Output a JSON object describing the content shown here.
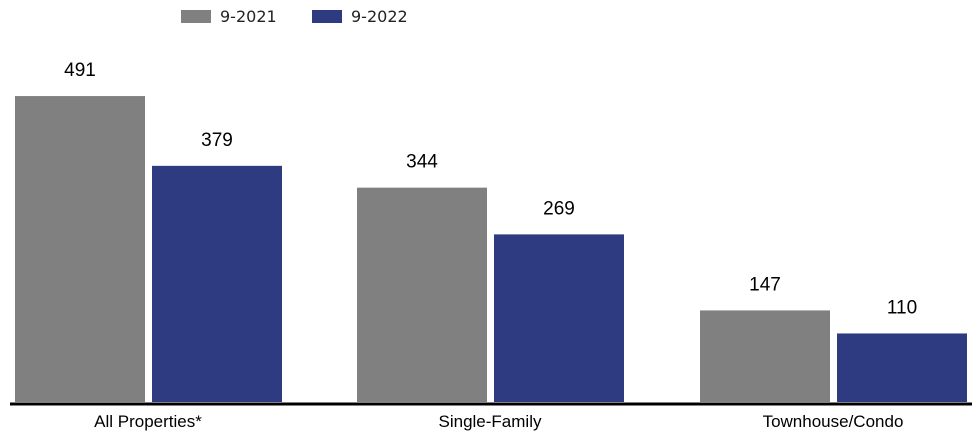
{
  "chart_data": {
    "type": "bar",
    "categories": [
      "All Properties*",
      "Single-Family",
      "Townhouse/Condo"
    ],
    "series": [
      {
        "name": "9-2021",
        "values": [
          491,
          344,
          147
        ],
        "color": "#808080"
      },
      {
        "name": "9-2022",
        "values": [
          379,
          269,
          110
        ],
        "color": "#2e3b80"
      }
    ],
    "ylim": [
      0,
      600
    ],
    "grid": false,
    "legend_position": "top-left",
    "data_labels": true
  }
}
